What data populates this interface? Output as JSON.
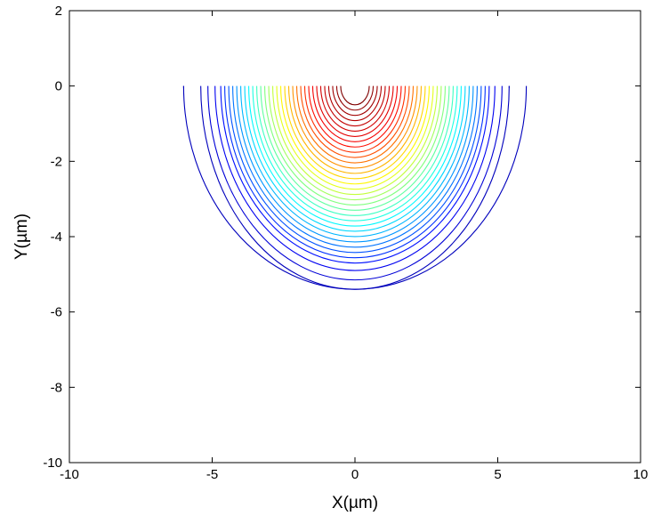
{
  "chart_data": {
    "type": "contour",
    "title": "",
    "xlabel": "X(µm)",
    "ylabel": "Y(µm)",
    "xlim": [
      -10,
      10
    ],
    "ylim": [
      -10,
      2
    ],
    "xticks": [
      -10,
      -5,
      0,
      5,
      10
    ],
    "yticks": [
      -10,
      -8,
      -6,
      -4,
      -2,
      0
    ],
    "xtick_labels": [
      "-10",
      "-5",
      "0",
      "5",
      "10"
    ],
    "ytick_labels": [
      "-10",
      "-8",
      "-6",
      "-4",
      "-2",
      "0"
    ],
    "grid": false,
    "legend": "none",
    "colormap": "jet",
    "colormap_colors": [
      "#00008f",
      "#0000ff",
      "#00ffff",
      "#ffff00",
      "#ff0000",
      "#800000"
    ],
    "contour_shape": "semicircle centered at (0, 0), y <= 0",
    "contour_radii": [
      0.5,
      0.64,
      0.78,
      0.92,
      1.06,
      1.2,
      1.34,
      1.48,
      1.62,
      1.76,
      1.9,
      2.04,
      2.18,
      2.32,
      2.46,
      2.6,
      2.74,
      2.88,
      3.02,
      3.16,
      3.3,
      3.44,
      3.58,
      3.72,
      3.86,
      4.0,
      4.14,
      4.28,
      4.42,
      4.56,
      4.7,
      4.9,
      5.15,
      5.4
    ],
    "outer_horizontal_extent": 6.0
  }
}
